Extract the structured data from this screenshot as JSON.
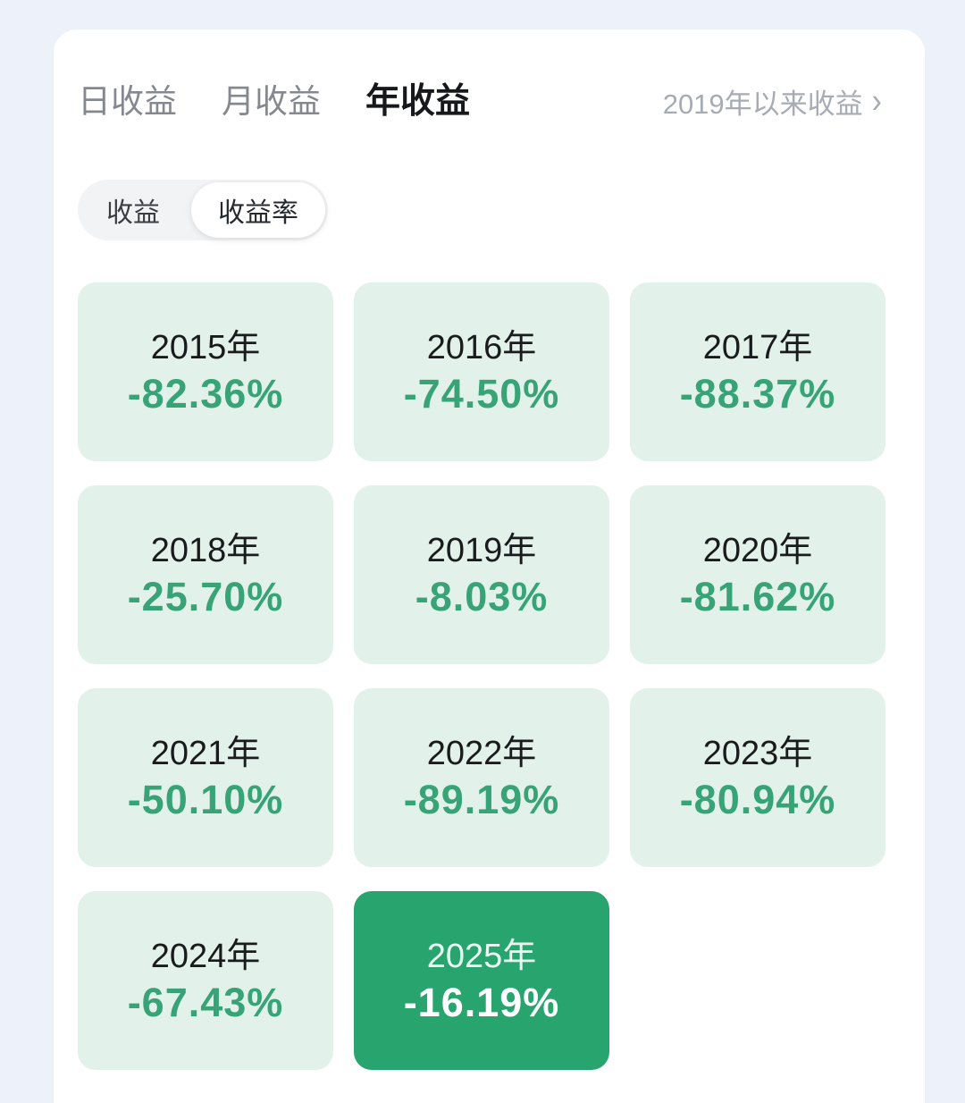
{
  "header": {
    "tabs": [
      {
        "label": "日收益",
        "selected": false
      },
      {
        "label": "月收益",
        "selected": false
      },
      {
        "label": "年收益",
        "selected": true
      }
    ],
    "selected_tab": "年收益",
    "since_link": {
      "label": "2019年以来收益",
      "chevron": "›"
    }
  },
  "toggle": {
    "options": [
      {
        "label": "收益",
        "selected": false
      },
      {
        "label": "收益率",
        "selected": true
      }
    ],
    "selected": "收益率"
  },
  "cells": [
    {
      "year": "2015年",
      "value": "-82.36%",
      "highlighted": false
    },
    {
      "year": "2016年",
      "value": "-74.50%",
      "highlighted": false
    },
    {
      "year": "2017年",
      "value": "-88.37%",
      "highlighted": false
    },
    {
      "year": "2018年",
      "value": "-25.70%",
      "highlighted": false
    },
    {
      "year": "2019年",
      "value": "-8.03%",
      "highlighted": false
    },
    {
      "year": "2020年",
      "value": "-81.62%",
      "highlighted": false
    },
    {
      "year": "2021年",
      "value": "-50.10%",
      "highlighted": false
    },
    {
      "year": "2022年",
      "value": "-89.19%",
      "highlighted": false
    },
    {
      "year": "2023年",
      "value": "-80.94%",
      "highlighted": false
    },
    {
      "year": "2024年",
      "value": "-67.43%",
      "highlighted": false
    },
    {
      "year": "2025年",
      "value": "-16.19%",
      "highlighted": true
    }
  ],
  "chart_data": {
    "type": "table",
    "categories": [
      "2015年",
      "2016年",
      "2017年",
      "2018年",
      "2019年",
      "2020年",
      "2021年",
      "2022年",
      "2023年",
      "2024年",
      "2025年"
    ],
    "values": [
      -82.36,
      -74.5,
      -88.37,
      -25.7,
      -8.03,
      -81.62,
      -50.1,
      -89.19,
      -80.94,
      -67.43,
      -16.19
    ],
    "unit": "%",
    "highlighted_category": "2025年"
  },
  "colors": {
    "page_background": "#edf1f9",
    "panel_background": "#ffffff",
    "cell_background": "#e2f2ea",
    "cell_highlight_background": "#28a46e",
    "value_green": "#38a377",
    "tab_inactive": "#85888f",
    "tab_active": "#16181b",
    "link_gray": "#a7abb4",
    "toggle_background": "#f2f3f5"
  }
}
